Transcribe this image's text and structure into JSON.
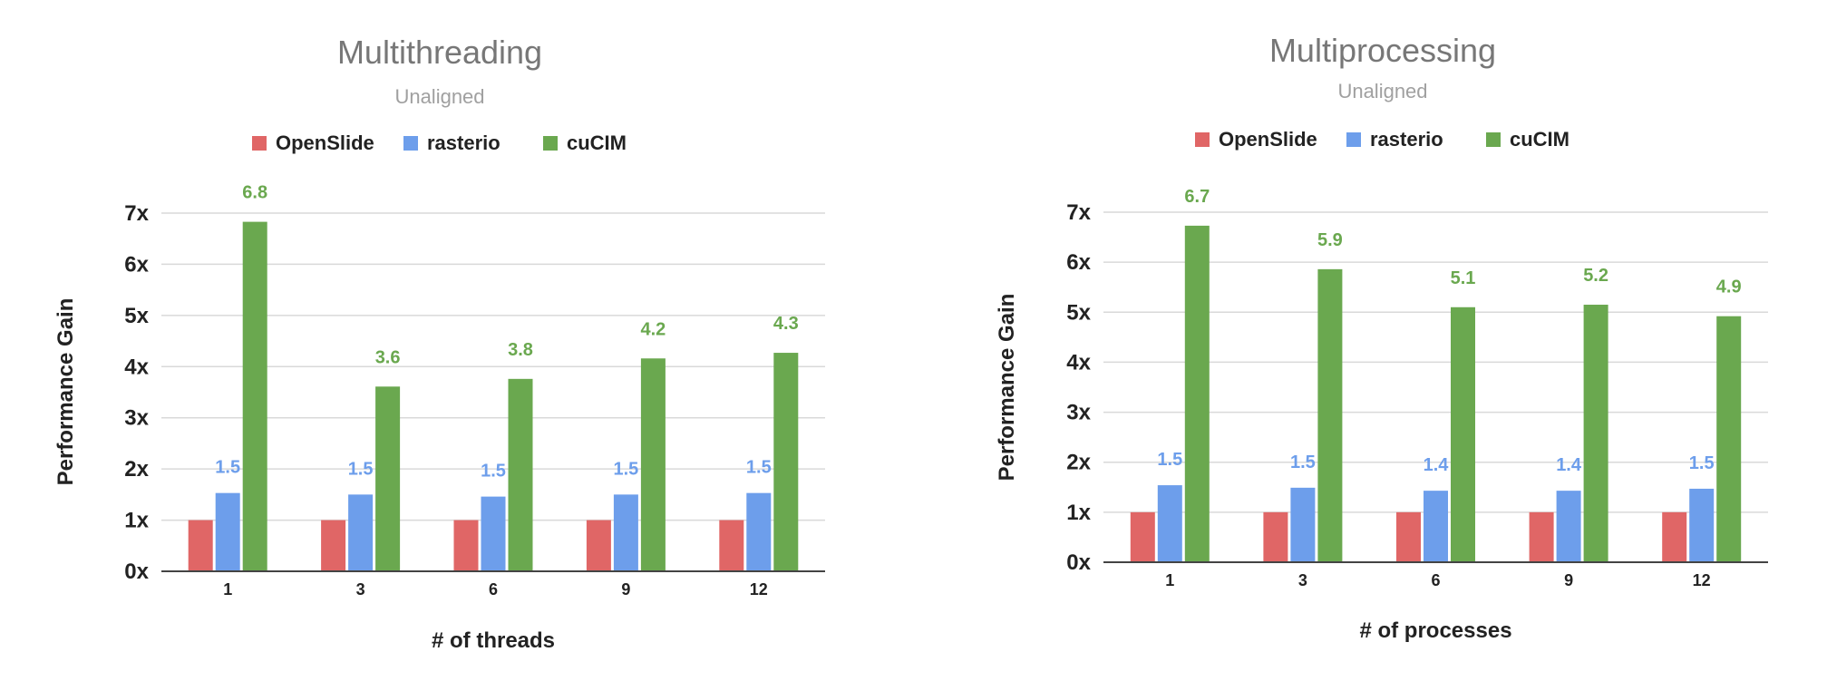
{
  "colors": {
    "OpenSlide": "#e06666",
    "rasterio": "#6d9eeb",
    "cuCIM": "#6aa84f"
  },
  "chart_data": [
    {
      "type": "bar",
      "title": "Multithreading",
      "subtitle": "Unaligned",
      "xlabel": "# of threads",
      "ylabel": "Performance Gain",
      "categories": [
        "1",
        "3",
        "6",
        "9",
        "12"
      ],
      "ylim": [
        0,
        7
      ],
      "yticks": [
        "0x",
        "1x",
        "2x",
        "3x",
        "4x",
        "5x",
        "6x",
        "7x"
      ],
      "legend_position": "top",
      "grid": true,
      "series": [
        {
          "name": "OpenSlide",
          "values": [
            1,
            1,
            1,
            1,
            1
          ]
        },
        {
          "name": "rasterio",
          "values": [
            1.53,
            1.5,
            1.46,
            1.5,
            1.53
          ],
          "labels": [
            "1.5",
            "1.5",
            "1.5",
            "1.5",
            "1.5"
          ]
        },
        {
          "name": "cuCIM",
          "values": [
            6.83,
            3.61,
            3.76,
            4.16,
            4.27
          ],
          "labels": [
            "6.8",
            "3.6",
            "3.8",
            "4.2",
            "4.3"
          ]
        }
      ]
    },
    {
      "type": "bar",
      "title": "Multiprocessing",
      "subtitle": "Unaligned",
      "xlabel": "# of processes",
      "ylabel": "Performance Gain",
      "categories": [
        "1",
        "3",
        "6",
        "9",
        "12"
      ],
      "ylim": [
        0,
        7
      ],
      "yticks": [
        "0x",
        "1x",
        "2x",
        "3x",
        "4x",
        "5x",
        "6x",
        "7x"
      ],
      "legend_position": "top",
      "grid": true,
      "series": [
        {
          "name": "OpenSlide",
          "values": [
            1,
            1,
            1,
            1,
            1
          ]
        },
        {
          "name": "rasterio",
          "values": [
            1.54,
            1.49,
            1.43,
            1.43,
            1.47
          ],
          "labels": [
            "1.5",
            "1.5",
            "1.4",
            "1.4",
            "1.5"
          ]
        },
        {
          "name": "cuCIM",
          "values": [
            6.73,
            5.86,
            5.1,
            5.15,
            4.92
          ],
          "labels": [
            "6.7",
            "5.9",
            "5.1",
            "5.2",
            "4.9"
          ]
        }
      ]
    }
  ]
}
